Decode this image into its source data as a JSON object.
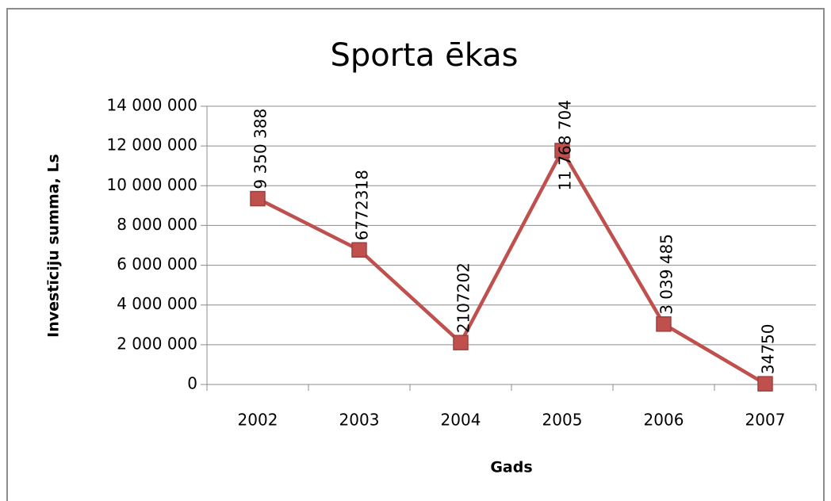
{
  "chart_data": {
    "type": "line",
    "title": "Sporta ēkas",
    "ylabel": "Investīciju summa, Ls",
    "xlabel": "Gads",
    "categories": [
      "2002",
      "2003",
      "2004",
      "2005",
      "2006",
      "2007"
    ],
    "series": [
      {
        "name": "Sporta ēkas",
        "color": "#c0504d",
        "values": [
          9350388,
          6772318,
          2107202,
          11768704,
          3039485,
          34750
        ],
        "value_labels": [
          "9 350 388",
          "6772318",
          "2107202",
          "11 768 704",
          "3 039 485",
          "34750"
        ]
      }
    ],
    "ylim": [
      0,
      14000000
    ],
    "yticks": [
      0,
      {
        "value": 2000000,
        "label": "2 000 000"
      },
      {
        "value": 4000000,
        "label": "4 000 000"
      },
      {
        "value": 6000000,
        "label": "6 000 000"
      },
      {
        "value": 8000000,
        "label": "8 000 000"
      },
      {
        "value": 10000000,
        "label": "10 000 000"
      },
      {
        "value": 12000000,
        "label": "12 000 000"
      },
      {
        "value": 14000000,
        "label": "14 000 000"
      }
    ],
    "grid": true,
    "legend": false
  }
}
